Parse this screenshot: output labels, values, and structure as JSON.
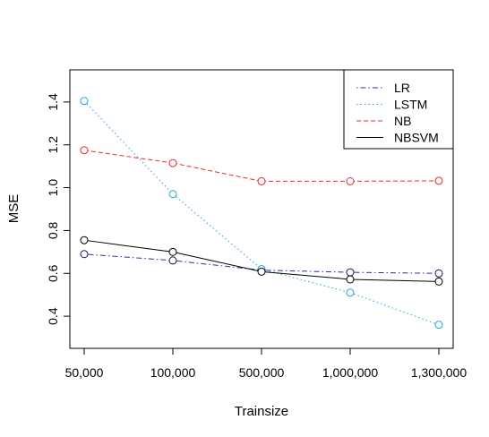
{
  "chart_data": {
    "type": "line",
    "title": "",
    "xlabel": "Trainsize",
    "ylabel": "MSE",
    "categories": [
      "50,000",
      "100,000",
      "500,000",
      "1,000,000",
      "1,300,000"
    ],
    "ylim": [
      0.25,
      1.55
    ],
    "yticks": [
      "0.4",
      "0.6",
      "0.8",
      "1.0",
      "1.2",
      "1.4"
    ],
    "grid": false,
    "legend_position": "top-right",
    "series": [
      {
        "name": "LR",
        "values": [
          0.69,
          0.66,
          0.615,
          0.605,
          0.6
        ],
        "color": "#2b2bb0",
        "marker_color": "#1a1a5e",
        "line_style": "dotdash"
      },
      {
        "name": "LSTM",
        "values": [
          1.405,
          0.97,
          0.62,
          0.51,
          0.36
        ],
        "color": "#1fa7d6",
        "marker_color": "#1fa7d6",
        "line_style": "dotted"
      },
      {
        "name": "NB",
        "values": [
          1.175,
          1.115,
          1.03,
          1.03,
          1.032
        ],
        "color": "#e8282c",
        "marker_color": "#e8282c",
        "line_style": "dashed"
      },
      {
        "name": "NBSVM",
        "values": [
          0.755,
          0.7,
          0.608,
          0.572,
          0.562
        ],
        "color": "#000000",
        "marker_color": "#000000",
        "line_style": "solid"
      }
    ]
  }
}
